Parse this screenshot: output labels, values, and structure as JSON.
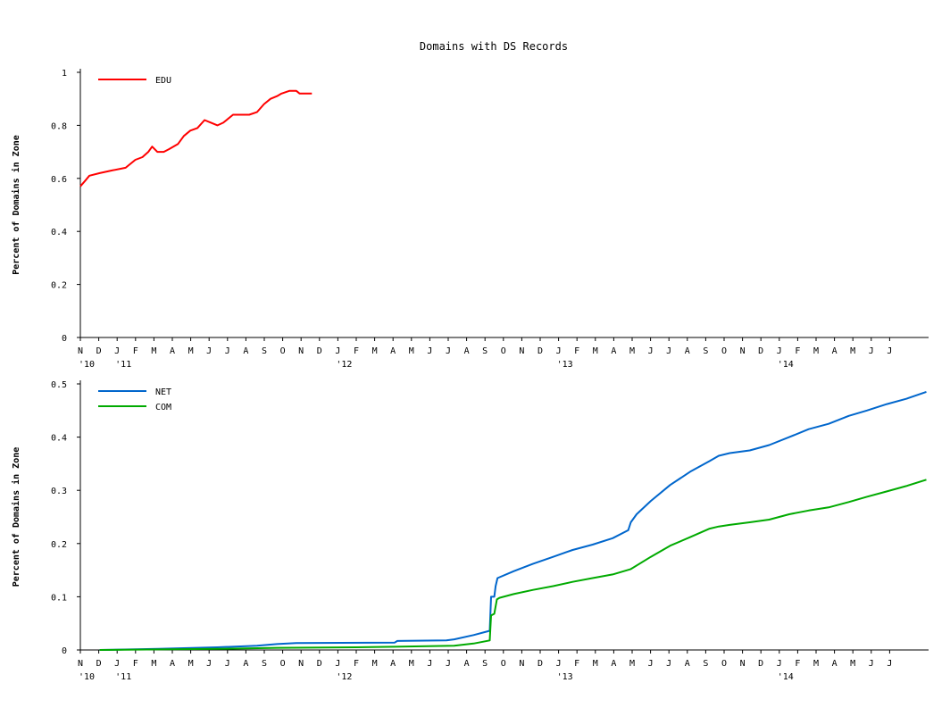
{
  "title": "Domains with DS Records",
  "chart_data": [
    {
      "type": "line",
      "ylabel": "Percent of Domains in Zone",
      "ylim": [
        0,
        1
      ],
      "yticks": [
        "0",
        "0.2",
        "0.4",
        "0.6",
        "0.8",
        "1"
      ],
      "xlim": [
        "2010-11-01",
        "2014-06-01"
      ],
      "legend_position": "top-left",
      "series": [
        {
          "name": "EDU",
          "color": "#ff0000",
          "points": [
            [
              "2010-11-01",
              0.57
            ],
            [
              "2010-11-08",
              0.59
            ],
            [
              "2010-11-15",
              0.61
            ],
            [
              "2010-12-01",
              0.62
            ],
            [
              "2010-12-20",
              0.63
            ],
            [
              "2011-01-10",
              0.64
            ],
            [
              "2011-01-25",
              0.67
            ],
            [
              "2011-02-05",
              0.68
            ],
            [
              "2011-02-14",
              0.7
            ],
            [
              "2011-02-20",
              0.72
            ],
            [
              "2011-02-28",
              0.7
            ],
            [
              "2011-03-10",
              0.7
            ],
            [
              "2011-03-18",
              0.71
            ],
            [
              "2011-04-01",
              0.73
            ],
            [
              "2011-04-10",
              0.76
            ],
            [
              "2011-04-20",
              0.78
            ],
            [
              "2011-05-01",
              0.79
            ],
            [
              "2011-05-12",
              0.82
            ],
            [
              "2011-05-22",
              0.81
            ],
            [
              "2011-06-01",
              0.8
            ],
            [
              "2011-06-10",
              0.81
            ],
            [
              "2011-06-25",
              0.84
            ],
            [
              "2011-07-20",
              0.84
            ],
            [
              "2011-08-01",
              0.85
            ],
            [
              "2011-08-12",
              0.88
            ],
            [
              "2011-08-22",
              0.9
            ],
            [
              "2011-09-01",
              0.91
            ],
            [
              "2011-09-08",
              0.92
            ],
            [
              "2011-09-20",
              0.93
            ],
            [
              "2011-10-01",
              0.93
            ],
            [
              "2011-10-06",
              0.92
            ],
            [
              "2011-10-25",
              0.92
            ]
          ]
        }
      ],
      "xticks": [
        {
          "label": "N",
          "date": "2010-11-01",
          "year": "'10"
        },
        {
          "label": "D",
          "date": "2010-12-01"
        },
        {
          "label": "J",
          "date": "2011-01-01",
          "year": "'11"
        },
        {
          "label": "F",
          "date": "2011-02-01"
        },
        {
          "label": "M",
          "date": "2011-03-01"
        },
        {
          "label": "A",
          "date": "2011-04-01"
        },
        {
          "label": "M",
          "date": "2011-05-01"
        },
        {
          "label": "J",
          "date": "2011-06-01"
        },
        {
          "label": "J",
          "date": "2011-07-01"
        },
        {
          "label": "A",
          "date": "2011-08-01"
        },
        {
          "label": "S",
          "date": "2011-09-01"
        },
        {
          "label": "O",
          "date": "2011-10-01"
        },
        {
          "label": "N",
          "date": "2011-11-01"
        },
        {
          "label": "D",
          "date": "2011-12-01"
        },
        {
          "label": "J",
          "date": "2012-01-01",
          "year": "'12"
        },
        {
          "label": "F",
          "date": "2012-02-01"
        },
        {
          "label": "M",
          "date": "2012-03-01"
        },
        {
          "label": "A",
          "date": "2012-04-01"
        },
        {
          "label": "M",
          "date": "2012-05-01"
        },
        {
          "label": "J",
          "date": "2012-06-01"
        },
        {
          "label": "J",
          "date": "2012-07-01"
        },
        {
          "label": "A",
          "date": "2012-08-01"
        },
        {
          "label": "S",
          "date": "2012-09-01"
        },
        {
          "label": "O",
          "date": "2012-10-01"
        },
        {
          "label": "N",
          "date": "2012-11-01"
        },
        {
          "label": "D",
          "date": "2012-12-01"
        },
        {
          "label": "J",
          "date": "2013-01-01",
          "year": "'13"
        },
        {
          "label": "F",
          "date": "2013-02-01"
        },
        {
          "label": "M",
          "date": "2013-03-01"
        },
        {
          "label": "A",
          "date": "2013-04-01"
        },
        {
          "label": "M",
          "date": "2013-05-01"
        },
        {
          "label": "J",
          "date": "2013-06-01"
        },
        {
          "label": "J",
          "date": "2013-07-01"
        },
        {
          "label": "A",
          "date": "2013-08-01"
        },
        {
          "label": "S",
          "date": "2013-09-01"
        },
        {
          "label": "O",
          "date": "2013-10-01"
        },
        {
          "label": "N",
          "date": "2013-11-01"
        },
        {
          "label": "D",
          "date": "2013-12-01"
        },
        {
          "label": "J",
          "date": "2014-01-01",
          "year": "'14"
        },
        {
          "label": "F",
          "date": "2014-02-01"
        },
        {
          "label": "M",
          "date": "2014-03-01"
        },
        {
          "label": "A",
          "date": "2014-04-01"
        },
        {
          "label": "M",
          "date": "2014-05-01"
        },
        {
          "label": "J",
          "date": "2014-06-01"
        },
        {
          "label": "J",
          "date": "2014-07-01"
        }
      ]
    },
    {
      "type": "line",
      "ylabel": "Percent of Domains in Zone",
      "ylim": [
        0,
        0.5
      ],
      "yticks": [
        "0",
        "0.1",
        "0.2",
        "0.3",
        "0.4",
        "0.5"
      ],
      "xlim": [
        "2010-11-01",
        "2014-06-01"
      ],
      "legend_position": "top-left",
      "series": [
        {
          "name": "NET",
          "color": "#0066cc",
          "points": [
            [
              "2010-12-01",
              0.0
            ],
            [
              "2011-03-01",
              0.002
            ],
            [
              "2011-06-01",
              0.005
            ],
            [
              "2011-08-01",
              0.008
            ],
            [
              "2011-09-01",
              0.011
            ],
            [
              "2011-10-01",
              0.013
            ],
            [
              "2012-03-01",
              0.014
            ],
            [
              "2012-03-05",
              0.017
            ],
            [
              "2012-05-20",
              0.018
            ],
            [
              "2012-06-01",
              0.02
            ],
            [
              "2012-07-01",
              0.028
            ],
            [
              "2012-07-26",
              0.036
            ],
            [
              "2012-07-28",
              0.1
            ],
            [
              "2012-08-02",
              0.1
            ],
            [
              "2012-08-04",
              0.12
            ],
            [
              "2012-08-07",
              0.135
            ],
            [
              "2012-09-01",
              0.148
            ],
            [
              "2012-10-01",
              0.162
            ],
            [
              "2012-11-01",
              0.175
            ],
            [
              "2012-12-01",
              0.188
            ],
            [
              "2013-01-01",
              0.198
            ],
            [
              "2013-02-01",
              0.21
            ],
            [
              "2013-02-25",
              0.225
            ],
            [
              "2013-03-01",
              0.24
            ],
            [
              "2013-03-10",
              0.255
            ],
            [
              "2013-04-01",
              0.28
            ],
            [
              "2013-05-01",
              0.31
            ],
            [
              "2013-06-01",
              0.335
            ],
            [
              "2013-07-01",
              0.355
            ],
            [
              "2013-07-15",
              0.365
            ],
            [
              "2013-08-01",
              0.37
            ],
            [
              "2013-09-01",
              0.375
            ],
            [
              "2013-10-01",
              0.385
            ],
            [
              "2013-11-01",
              0.4
            ],
            [
              "2013-12-01",
              0.415
            ],
            [
              "2014-01-01",
              0.425
            ],
            [
              "2014-02-01",
              0.44
            ],
            [
              "2014-03-01",
              0.45
            ],
            [
              "2014-04-01",
              0.462
            ],
            [
              "2014-05-01",
              0.472
            ],
            [
              "2014-06-01",
              0.485
            ]
          ]
        },
        {
          "name": "COM",
          "color": "#00aa00",
          "points": [
            [
              "2010-12-01",
              0.0
            ],
            [
              "2011-03-01",
              0.001
            ],
            [
              "2011-06-01",
              0.002
            ],
            [
              "2011-09-01",
              0.004
            ],
            [
              "2012-01-01",
              0.005
            ],
            [
              "2012-03-01",
              0.006
            ],
            [
              "2012-06-01",
              0.008
            ],
            [
              "2012-07-01",
              0.012
            ],
            [
              "2012-07-26",
              0.018
            ],
            [
              "2012-07-28",
              0.065
            ],
            [
              "2012-08-02",
              0.068
            ],
            [
              "2012-08-06",
              0.095
            ],
            [
              "2012-08-10",
              0.098
            ],
            [
              "2012-09-01",
              0.105
            ],
            [
              "2012-10-01",
              0.113
            ],
            [
              "2012-11-01",
              0.12
            ],
            [
              "2012-12-01",
              0.128
            ],
            [
              "2013-01-01",
              0.135
            ],
            [
              "2013-02-01",
              0.142
            ],
            [
              "2013-03-01",
              0.152
            ],
            [
              "2013-04-01",
              0.175
            ],
            [
              "2013-05-01",
              0.196
            ],
            [
              "2013-06-01",
              0.212
            ],
            [
              "2013-07-01",
              0.228
            ],
            [
              "2013-07-15",
              0.232
            ],
            [
              "2013-08-01",
              0.235
            ],
            [
              "2013-09-01",
              0.24
            ],
            [
              "2013-10-01",
              0.245
            ],
            [
              "2013-11-01",
              0.255
            ],
            [
              "2013-12-01",
              0.262
            ],
            [
              "2014-01-01",
              0.268
            ],
            [
              "2014-02-01",
              0.278
            ],
            [
              "2014-03-01",
              0.288
            ],
            [
              "2014-04-01",
              0.298
            ],
            [
              "2014-05-01",
              0.308
            ],
            [
              "2014-06-01",
              0.32
            ]
          ]
        }
      ],
      "xticks": [
        {
          "label": "N",
          "date": "2010-11-01",
          "year": "'10"
        },
        {
          "label": "D",
          "date": "2010-12-01"
        },
        {
          "label": "J",
          "date": "2011-01-01",
          "year": "'11"
        },
        {
          "label": "F",
          "date": "2011-02-01"
        },
        {
          "label": "M",
          "date": "2011-03-01"
        },
        {
          "label": "A",
          "date": "2011-04-01"
        },
        {
          "label": "M",
          "date": "2011-05-01"
        },
        {
          "label": "J",
          "date": "2011-06-01"
        },
        {
          "label": "J",
          "date": "2011-07-01"
        },
        {
          "label": "A",
          "date": "2011-08-01"
        },
        {
          "label": "S",
          "date": "2011-09-01"
        },
        {
          "label": "O",
          "date": "2011-10-01"
        },
        {
          "label": "N",
          "date": "2011-11-01"
        },
        {
          "label": "D",
          "date": "2011-12-01"
        },
        {
          "label": "J",
          "date": "2012-01-01",
          "year": "'12"
        },
        {
          "label": "F",
          "date": "2012-02-01"
        },
        {
          "label": "M",
          "date": "2012-03-01"
        },
        {
          "label": "A",
          "date": "2012-04-01"
        },
        {
          "label": "M",
          "date": "2012-05-01"
        },
        {
          "label": "J",
          "date": "2012-06-01"
        },
        {
          "label": "J",
          "date": "2012-07-01"
        },
        {
          "label": "A",
          "date": "2012-08-01"
        },
        {
          "label": "S",
          "date": "2012-09-01"
        },
        {
          "label": "O",
          "date": "2012-10-01"
        },
        {
          "label": "N",
          "date": "2012-11-01"
        },
        {
          "label": "D",
          "date": "2012-12-01"
        },
        {
          "label": "J",
          "date": "2013-01-01",
          "year": "'13"
        },
        {
          "label": "F",
          "date": "2013-02-01"
        },
        {
          "label": "M",
          "date": "2013-03-01"
        },
        {
          "label": "A",
          "date": "2013-04-01"
        },
        {
          "label": "M",
          "date": "2013-05-01"
        },
        {
          "label": "J",
          "date": "2013-06-01"
        },
        {
          "label": "J",
          "date": "2013-07-01"
        },
        {
          "label": "A",
          "date": "2013-08-01"
        },
        {
          "label": "S",
          "date": "2013-09-01"
        },
        {
          "label": "O",
          "date": "2013-10-01"
        },
        {
          "label": "N",
          "date": "2013-11-01"
        },
        {
          "label": "D",
          "date": "2013-12-01"
        },
        {
          "label": "J",
          "date": "2014-01-01",
          "year": "'14"
        },
        {
          "label": "F",
          "date": "2014-02-01"
        },
        {
          "label": "M",
          "date": "2014-03-01"
        },
        {
          "label": "A",
          "date": "2014-04-01"
        },
        {
          "label": "M",
          "date": "2014-05-01"
        },
        {
          "label": "J",
          "date": "2014-06-01"
        },
        {
          "label": "J",
          "date": "2014-07-01"
        }
      ]
    }
  ]
}
